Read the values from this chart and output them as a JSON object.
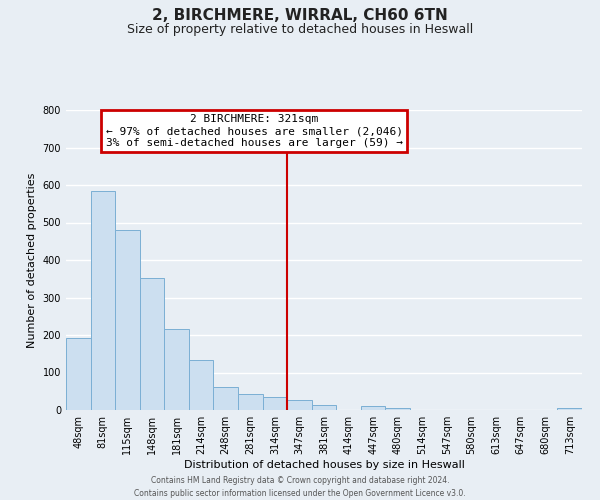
{
  "title": "2, BIRCHMERE, WIRRAL, CH60 6TN",
  "subtitle": "Size of property relative to detached houses in Heswall",
  "xlabel": "Distribution of detached houses by size in Heswall",
  "ylabel": "Number of detached properties",
  "bar_labels": [
    "48sqm",
    "81sqm",
    "115sqm",
    "148sqm",
    "181sqm",
    "214sqm",
    "248sqm",
    "281sqm",
    "314sqm",
    "347sqm",
    "381sqm",
    "414sqm",
    "447sqm",
    "480sqm",
    "514sqm",
    "547sqm",
    "580sqm",
    "613sqm",
    "647sqm",
    "680sqm",
    "713sqm"
  ],
  "bar_values": [
    193,
    585,
    480,
    353,
    217,
    133,
    61,
    44,
    36,
    28,
    14,
    0,
    10,
    6,
    0,
    0,
    0,
    0,
    0,
    0,
    5
  ],
  "bar_color": "#ccdff0",
  "bar_edge_color": "#7bafd4",
  "property_line_x": 8.5,
  "property_label": "2 BIRCHMERE: 321sqm",
  "annotation_line1": "← 97% of detached houses are smaller (2,046)",
  "annotation_line2": "3% of semi-detached houses are larger (59) →",
  "annotation_box_facecolor": "#ffffff",
  "annotation_box_edgecolor": "#cc0000",
  "property_line_color": "#cc0000",
  "ylim": [
    0,
    800
  ],
  "yticks": [
    0,
    100,
    200,
    300,
    400,
    500,
    600,
    700,
    800
  ],
  "footer_line1": "Contains HM Land Registry data © Crown copyright and database right 2024.",
  "footer_line2": "Contains public sector information licensed under the Open Government Licence v3.0.",
  "bg_color": "#e8eef4",
  "grid_color": "#ffffff",
  "title_fontsize": 11,
  "subtitle_fontsize": 9,
  "ylabel_fontsize": 8,
  "xlabel_fontsize": 8,
  "tick_fontsize": 7,
  "annot_fontsize": 8
}
